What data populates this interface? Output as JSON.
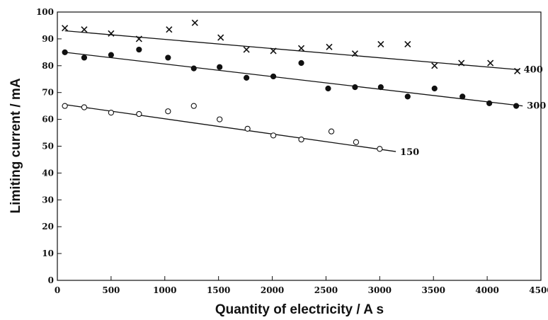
{
  "chart_data": {
    "type": "scatter",
    "title": "",
    "xlabel": "Quantity of electricity / A s",
    "ylabel": "Limiting current / mA",
    "xlim": [
      0,
      4500
    ],
    "ylim": [
      0,
      100
    ],
    "x_ticks": [
      0,
      500,
      1000,
      1500,
      2000,
      2500,
      3000,
      3500,
      4000,
      4500
    ],
    "y_ticks": [
      0,
      10,
      20,
      30,
      40,
      50,
      60,
      70,
      80,
      90,
      100
    ],
    "grid": false,
    "legend": "none",
    "series": [
      {
        "name": "400",
        "marker": "x",
        "points": [
          [
            70,
            94
          ],
          [
            250,
            93.5
          ],
          [
            500,
            92
          ],
          [
            760,
            90
          ],
          [
            1040,
            93.5
          ],
          [
            1280,
            96
          ],
          [
            1520,
            90.5
          ],
          [
            1760,
            86
          ],
          [
            2010,
            85.5
          ],
          [
            2270,
            86.5
          ],
          [
            2530,
            87
          ],
          [
            2770,
            84.5
          ],
          [
            3010,
            88
          ],
          [
            3260,
            88
          ],
          [
            3510,
            80
          ],
          [
            3760,
            81
          ],
          [
            4030,
            81
          ],
          [
            4280,
            78
          ]
        ],
        "fit": [
          [
            70,
            93
          ],
          [
            4300,
            78.5
          ]
        ]
      },
      {
        "name": "300",
        "marker": "filled-circle",
        "points": [
          [
            70,
            85
          ],
          [
            250,
            83
          ],
          [
            500,
            84
          ],
          [
            760,
            86
          ],
          [
            1030,
            83
          ],
          [
            1270,
            79
          ],
          [
            1510,
            79.5
          ],
          [
            1760,
            75.5
          ],
          [
            2010,
            76
          ],
          [
            2270,
            81
          ],
          [
            2520,
            71.5
          ],
          [
            2770,
            72
          ],
          [
            3010,
            72
          ],
          [
            3260,
            68.5
          ],
          [
            3510,
            71.5
          ],
          [
            3770,
            68.5
          ],
          [
            4020,
            66
          ],
          [
            4270,
            65
          ]
        ],
        "fit": [
          [
            70,
            85
          ],
          [
            4330,
            65
          ]
        ]
      },
      {
        "name": "150",
        "marker": "open-circle",
        "points": [
          [
            70,
            65
          ],
          [
            250,
            64.5
          ],
          [
            500,
            62.5
          ],
          [
            760,
            62
          ],
          [
            1030,
            63
          ],
          [
            1270,
            65
          ],
          [
            1510,
            60
          ],
          [
            1770,
            56.5
          ],
          [
            2010,
            54
          ],
          [
            2270,
            52.5
          ],
          [
            2550,
            55.5
          ],
          [
            2780,
            51.5
          ],
          [
            3000,
            49
          ]
        ],
        "fit": [
          [
            70,
            65.5
          ],
          [
            3150,
            48
          ]
        ]
      }
    ]
  }
}
